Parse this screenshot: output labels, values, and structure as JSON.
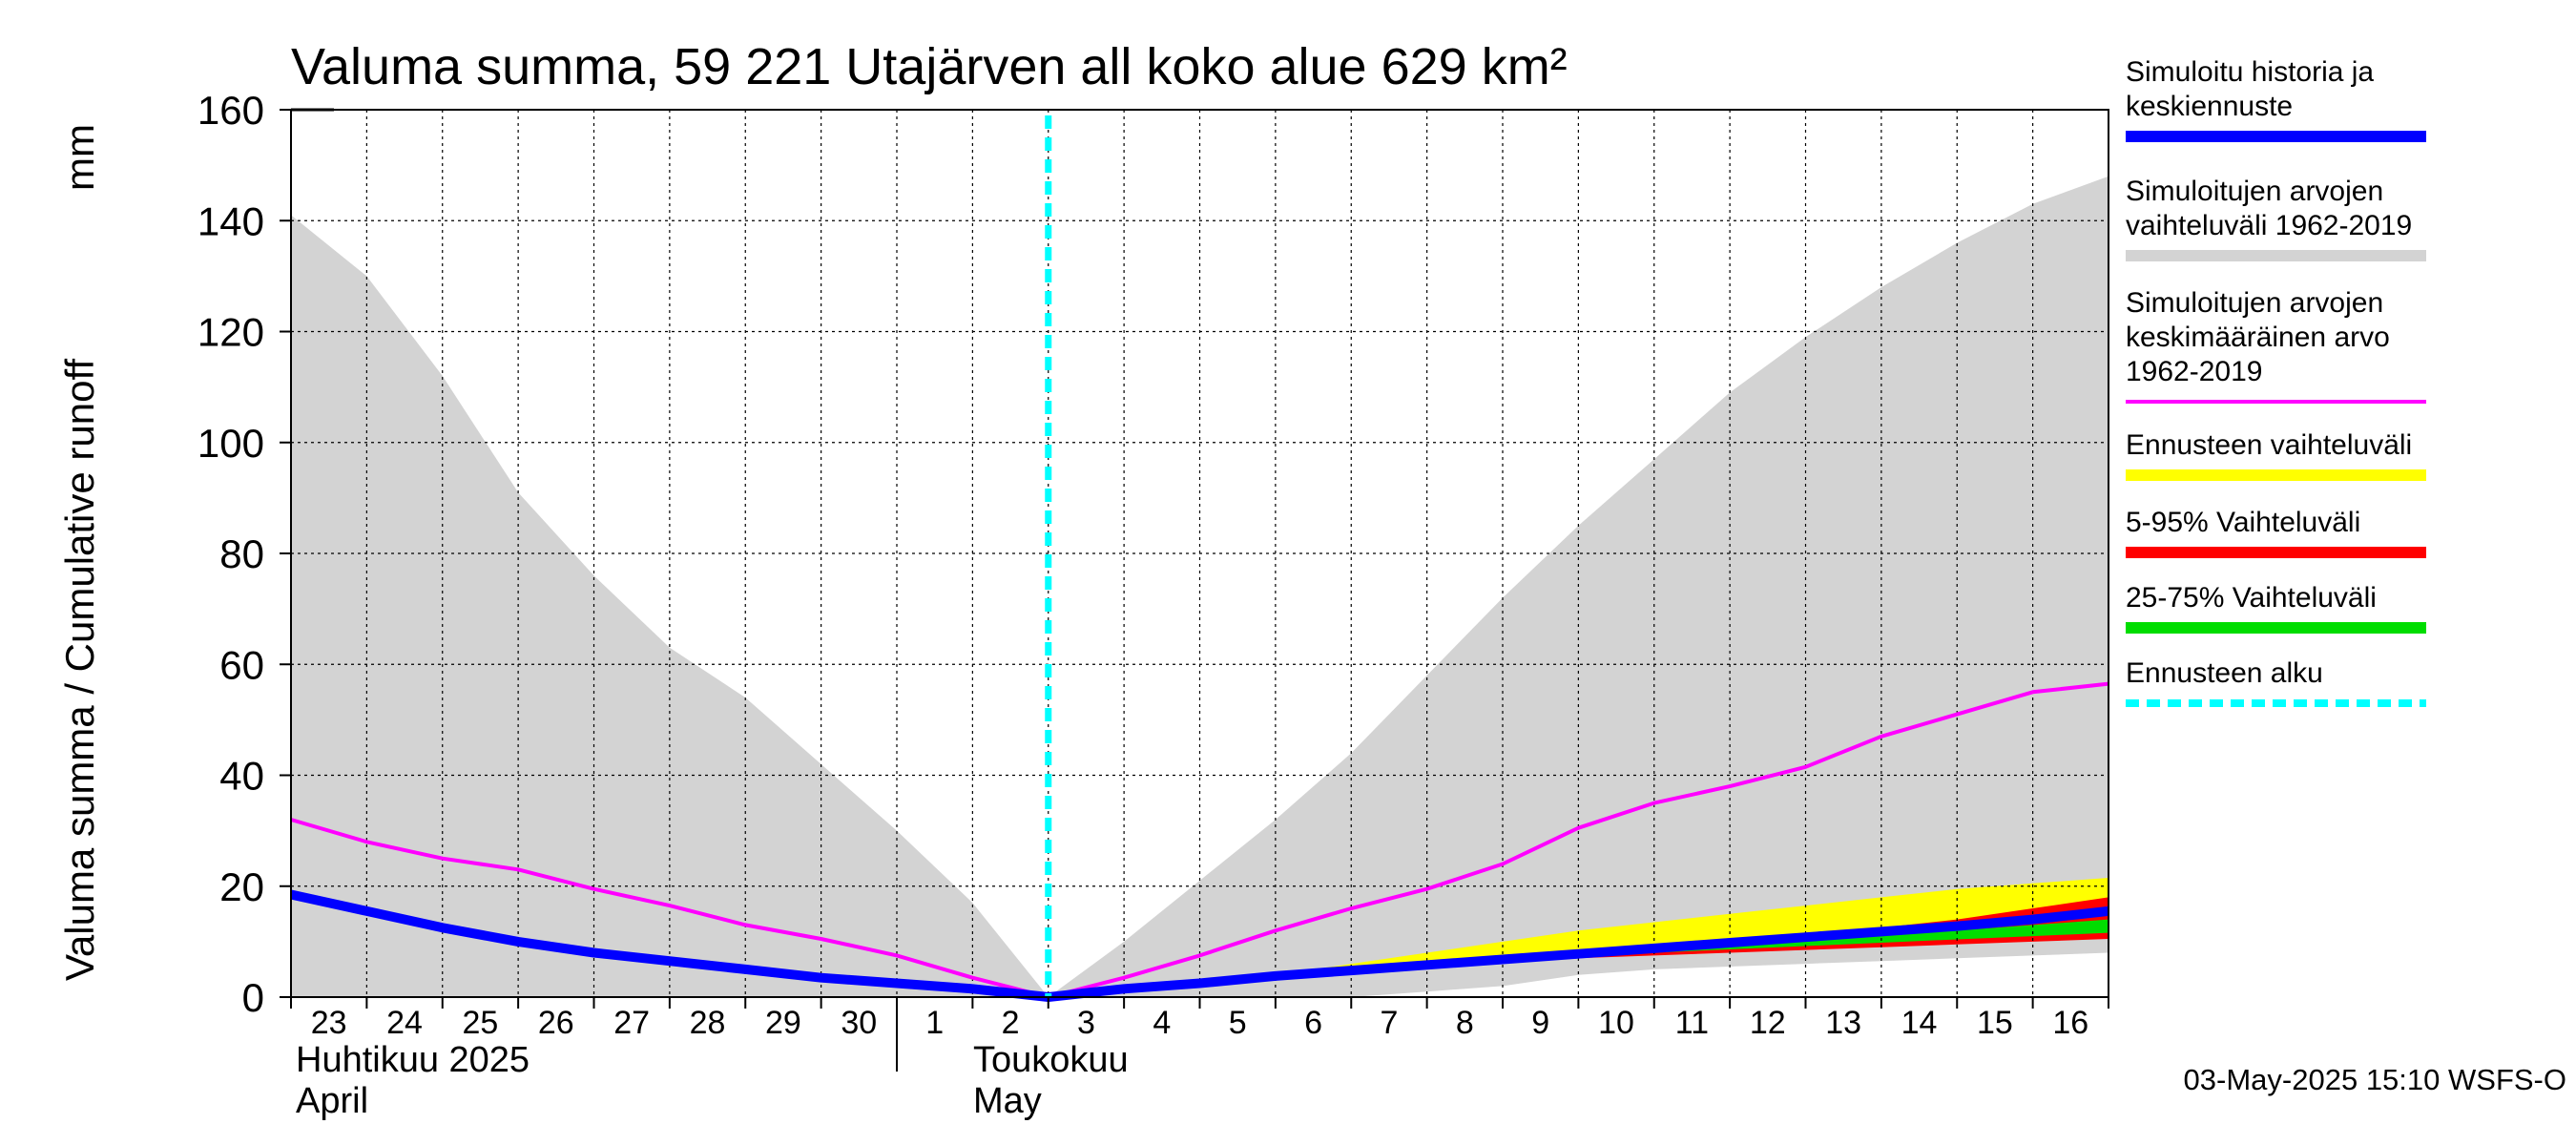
{
  "chart_data": {
    "type": "area",
    "title": "Valuma summa, 59 221 Utajärven all koko alue 629 km²",
    "ylabel_fi": "Valuma summa / Cumulative runoff",
    "ylabel_unit": "mm",
    "ylim": [
      0,
      160
    ],
    "yticks": [
      0,
      20,
      40,
      60,
      80,
      100,
      120,
      140,
      160
    ],
    "x_start": "2025-04-23",
    "x_end": "2025-05-17",
    "xtick_labels": [
      "23",
      "24",
      "25",
      "26",
      "27",
      "28",
      "29",
      "30",
      "1",
      "2",
      "3",
      "4",
      "5",
      "6",
      "7",
      "8",
      "9",
      "10",
      "11",
      "12",
      "13",
      "14",
      "15",
      "16"
    ],
    "month_labels": [
      {
        "line1": "Huhtikuu  2025",
        "line2": "April"
      },
      {
        "line1": "Toukokuu",
        "line2": "May"
      }
    ],
    "forecast_start": "2025-05-03",
    "grid": true,
    "legend_position": "right",
    "series": [
      {
        "name": "Simuloitujen arvojen vaihteluväli 1962-2019",
        "kind": "band",
        "color": "#d3d3d3",
        "x": [
          "04-23",
          "04-24",
          "04-25",
          "04-26",
          "04-27",
          "04-28",
          "04-29",
          "04-30",
          "05-01",
          "05-02",
          "05-03",
          "05-04",
          "05-05",
          "05-06",
          "05-07",
          "05-08",
          "05-09",
          "05-10",
          "05-11",
          "05-12",
          "05-13",
          "05-14",
          "05-15",
          "05-16",
          "05-17"
        ],
        "upper": [
          141,
          130,
          112,
          91,
          76,
          63,
          54,
          42,
          30,
          17,
          0,
          10,
          21,
          32,
          44,
          58,
          72,
          85,
          97,
          109,
          119,
          128,
          136,
          143,
          148
        ],
        "lower": [
          0,
          0,
          0,
          0,
          0,
          0,
          0,
          0,
          0,
          0,
          0,
          0,
          0,
          0,
          0,
          1,
          2,
          4,
          5,
          5.5,
          6,
          6.5,
          7,
          7.5,
          8
        ]
      },
      {
        "name": "Ennusteen vaihteluväli",
        "kind": "band",
        "color": "#ffff00",
        "x": [
          "05-06",
          "05-07",
          "05-08",
          "05-09",
          "05-10",
          "05-11",
          "05-12",
          "05-13",
          "05-14",
          "05-15",
          "05-16",
          "05-17"
        ],
        "upper": [
          4,
          6,
          8,
          10,
          12,
          13.5,
          15,
          16.5,
          18,
          19.5,
          20.5,
          21.5
        ],
        "lower": [
          3.5,
          4.5,
          5.5,
          6.5,
          7.5,
          8,
          8.5,
          9,
          9.5,
          10,
          10.5,
          11
        ]
      },
      {
        "name": "5-95% Vaihteluväli",
        "kind": "band",
        "color": "#ff0000",
        "x": [
          "05-06",
          "05-07",
          "05-08",
          "05-09",
          "05-10",
          "05-11",
          "05-12",
          "05-13",
          "05-14",
          "05-15",
          "05-16",
          "05-17"
        ],
        "upper": [
          4,
          5,
          6,
          7,
          8,
          9,
          10,
          11,
          12.5,
          14,
          16,
          18
        ],
        "lower": [
          3.5,
          4.5,
          5.5,
          6.5,
          7,
          7.5,
          8,
          8.5,
          9,
          9.5,
          10,
          10.5
        ]
      },
      {
        "name": "25-75% Vaihteluväli",
        "kind": "band",
        "color": "#00dd00",
        "x": [
          "05-06",
          "05-07",
          "05-08",
          "05-09",
          "05-10",
          "05-11",
          "05-12",
          "05-13",
          "05-14",
          "05-15",
          "05-16",
          "05-17"
        ],
        "upper": [
          3.9,
          4.9,
          5.9,
          6.9,
          7.8,
          8.6,
          9.4,
          10.2,
          11,
          12,
          13,
          14
        ],
        "lower": [
          3.6,
          4.6,
          5.6,
          6.6,
          7.3,
          8,
          8.6,
          9.2,
          9.8,
          10.4,
          11,
          11.6
        ]
      },
      {
        "name": "Simuloitujen arvojen keskimääräinen arvo 1962-2019",
        "kind": "line",
        "color": "#ff00ff",
        "x": [
          "04-23",
          "04-24",
          "04-25",
          "04-26",
          "04-27",
          "04-28",
          "04-29",
          "04-30",
          "05-01",
          "05-02",
          "05-03",
          "05-04",
          "05-05",
          "05-06",
          "05-07",
          "05-08",
          "05-09",
          "05-10",
          "05-11",
          "05-12",
          "05-13",
          "05-14",
          "05-15",
          "05-16",
          "05-17"
        ],
        "y": [
          32,
          28,
          25,
          23,
          19.5,
          16.5,
          13,
          10.5,
          7.5,
          3.5,
          0,
          3.5,
          7.5,
          12,
          16,
          19.5,
          24,
          30.5,
          35,
          38,
          41.5,
          47,
          51,
          55,
          56.5
        ]
      },
      {
        "name": "Simuloitu historia ja keskiennuste",
        "kind": "line",
        "color": "#0000ff",
        "x": [
          "04-23",
          "04-24",
          "04-25",
          "04-26",
          "04-27",
          "04-28",
          "04-29",
          "04-30",
          "05-01",
          "05-02",
          "05-03",
          "05-04",
          "05-05",
          "05-06",
          "05-07",
          "05-08",
          "05-09",
          "05-10",
          "05-11",
          "05-12",
          "05-13",
          "05-14",
          "05-15",
          "05-16",
          "05-17"
        ],
        "y": [
          18.5,
          15.5,
          12.5,
          10,
          8,
          6.5,
          5,
          3.5,
          2.5,
          1.5,
          0,
          1.5,
          2.5,
          3.8,
          4.8,
          5.8,
          6.8,
          7.8,
          8.8,
          9.8,
          10.8,
          11.8,
          12.8,
          14,
          15.5
        ]
      }
    ]
  },
  "legend": {
    "items": [
      {
        "lines": [
          "Simuloitu historia ja",
          "keskiennuste"
        ],
        "color": "#0000ff",
        "style": "solid"
      },
      {
        "lines": [
          "Simuloitujen arvojen",
          "vaihteluväli 1962-2019"
        ],
        "color": "#d3d3d3",
        "style": "solid"
      },
      {
        "lines": [
          "Simuloitujen arvojen",
          "keskimääräinen arvo",
          "   1962-2019"
        ],
        "color": "#ff00ff",
        "style": "thin"
      },
      {
        "lines": [
          "Ennusteen vaihteluväli"
        ],
        "color": "#ffff00",
        "style": "solid"
      },
      {
        "lines": [
          "5-95% Vaihteluväli"
        ],
        "color": "#ff0000",
        "style": "solid"
      },
      {
        "lines": [
          "25-75% Vaihteluväli"
        ],
        "color": "#00dd00",
        "style": "solid"
      },
      {
        "lines": [
          "Ennusteen alku"
        ],
        "color": "#00ffff",
        "style": "dashed"
      }
    ]
  },
  "footer": "03-May-2025 15:10 WSFS-O"
}
